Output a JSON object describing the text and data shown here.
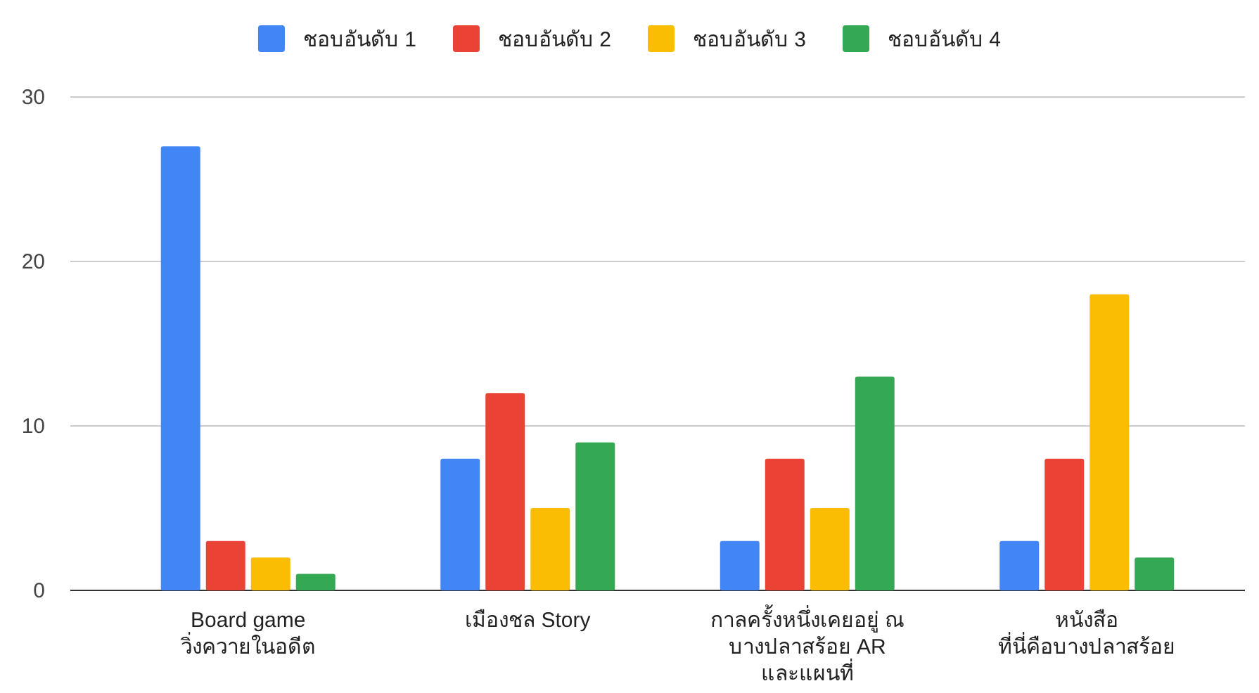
{
  "chart_data": {
    "type": "bar",
    "categories": [
      "Board game\nวิ่งควายในอดีต",
      "เมืองชล Story",
      "กาลครั้งหนึ่งเคยอยู่ ณ\nบางปลาสร้อย AR\nและแผนที่",
      "หนังสือ\nที่นี่คือบางปลาสร้อย"
    ],
    "series": [
      {
        "name": "ชอบอันดับ 1",
        "color": "#4285f4",
        "values": [
          27,
          8,
          3,
          3
        ]
      },
      {
        "name": "ชอบอันดับ 2",
        "color": "#ea4335",
        "values": [
          3,
          12,
          8,
          8
        ]
      },
      {
        "name": "ชอบอันดับ 3",
        "color": "#fbbc04",
        "values": [
          2,
          5,
          5,
          18
        ]
      },
      {
        "name": "ชอบอันดับ 4",
        "color": "#34a853",
        "values": [
          1,
          9,
          13,
          2
        ]
      }
    ],
    "ylim": [
      0,
      30
    ],
    "yticks": [
      0,
      10,
      20,
      30
    ],
    "grid": "y",
    "legend": "top"
  }
}
